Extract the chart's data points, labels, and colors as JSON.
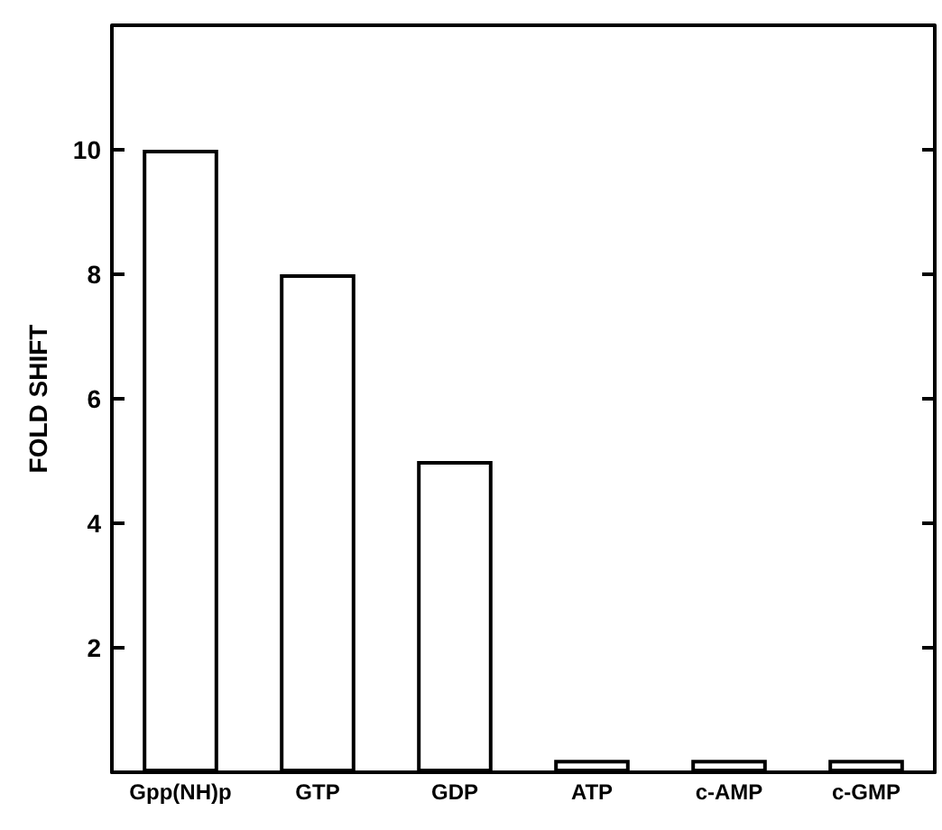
{
  "chart_data": {
    "type": "bar",
    "ylabel": "FOLD SHIFT",
    "categories": [
      "Gpp(NH)p",
      "GTP",
      "GDP",
      "ATP",
      "c-AMP",
      "c-GMP"
    ],
    "values": [
      10,
      8,
      5,
      0.2,
      0.2,
      0.2
    ],
    "color": "#ffffff",
    "ylim": [
      0,
      12
    ],
    "yticks": [
      2,
      4,
      6,
      8,
      10
    ],
    "grid": false
  }
}
